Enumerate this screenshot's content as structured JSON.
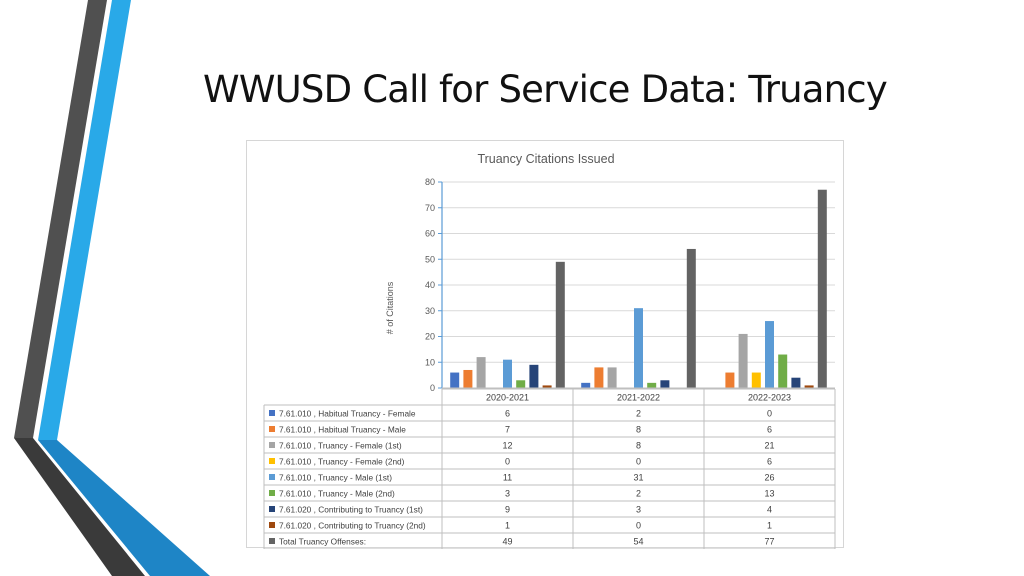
{
  "slide": {
    "title": "WWUSD Call for Service Data: Truancy"
  },
  "chart_data": {
    "type": "bar",
    "title": "Truancy Citations Issued",
    "xlabel": "",
    "ylabel": "# of Citations",
    "ylim": [
      0,
      80
    ],
    "yticks": [
      0,
      10,
      20,
      30,
      40,
      50,
      60,
      70,
      80
    ],
    "categories": [
      "2020-2021",
      "2021-2022",
      "2022-2023"
    ],
    "data_table": true,
    "series": [
      {
        "name": "7.61.010 , Habitual Truancy - Female",
        "color": "#4472C4",
        "values": [
          6,
          2,
          0
        ]
      },
      {
        "name": "7.61.010 , Habitual Truancy - Male",
        "color": "#ED7D31",
        "values": [
          7,
          8,
          6
        ]
      },
      {
        "name": "7.61.010 , Truancy - Female (1st)",
        "color": "#A5A5A5",
        "values": [
          12,
          8,
          21
        ]
      },
      {
        "name": "7.61.010 , Truancy - Female (2nd)",
        "color": "#FFC000",
        "values": [
          0,
          0,
          6
        ]
      },
      {
        "name": "7.61.010 , Truancy - Male (1st)",
        "color": "#5B9BD5",
        "values": [
          11,
          31,
          26
        ]
      },
      {
        "name": "7.61.010 , Truancy - Male (2nd)",
        "color": "#70AD47",
        "values": [
          3,
          2,
          13
        ]
      },
      {
        "name": "7.61.020 , Contributing to Truancy (1st)",
        "color": "#264478",
        "values": [
          9,
          3,
          4
        ]
      },
      {
        "name": "7.61.020 , Contributing to Truancy (2nd)",
        "color": "#9E480E",
        "values": [
          1,
          0,
          1
        ]
      },
      {
        "name": "Total Truancy Offenses:",
        "color": "#636363",
        "values": [
          49,
          54,
          77
        ]
      }
    ]
  },
  "colors": {
    "deco_dark": "#505050",
    "deco_light": "#29A9E8",
    "deco_blue": "#1E85C6",
    "grid": "#d9d9d9",
    "text": "#595959"
  }
}
